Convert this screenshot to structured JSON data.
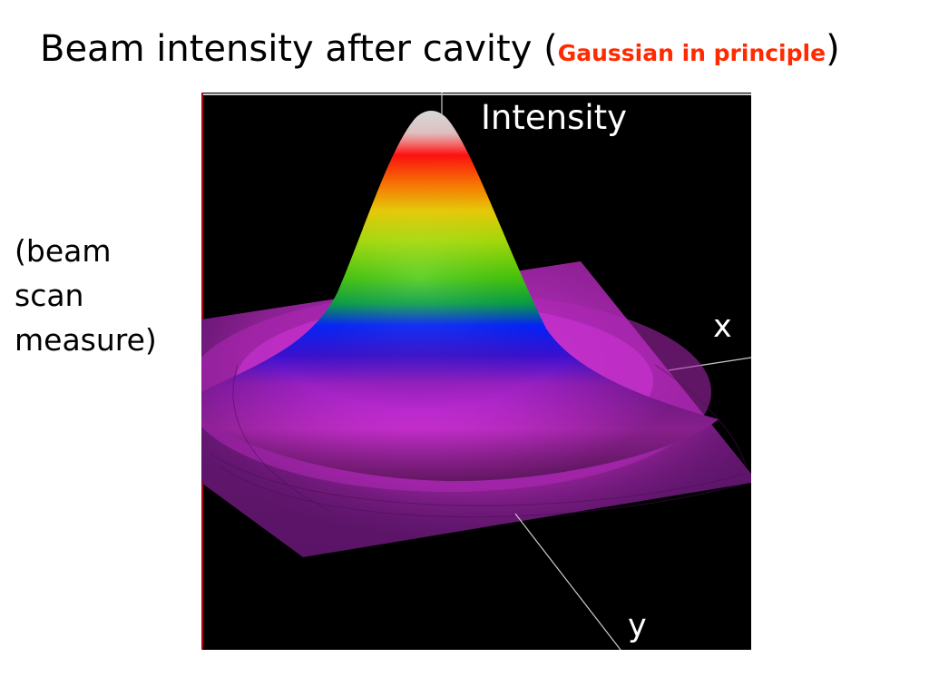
{
  "title": {
    "main": "Beam intensity after cavity (",
    "highlight": "Gaussian in principle",
    "close": ")",
    "highlight_color": "#ff2a00"
  },
  "side_note": {
    "lines": [
      "(beam",
      "scan",
      "measure)"
    ]
  },
  "plot": {
    "background_color": "#000000",
    "labels": {
      "intensity": "Intensity",
      "x": "x",
      "y": "y"
    },
    "color_bands": [
      "#f8f8f8",
      "#ff0000",
      "#ff8a00",
      "#c8e600",
      "#48d000",
      "#00a020",
      "#0018ff",
      "#7a1aa8",
      "#d42ad8",
      "#6a1670"
    ]
  }
}
